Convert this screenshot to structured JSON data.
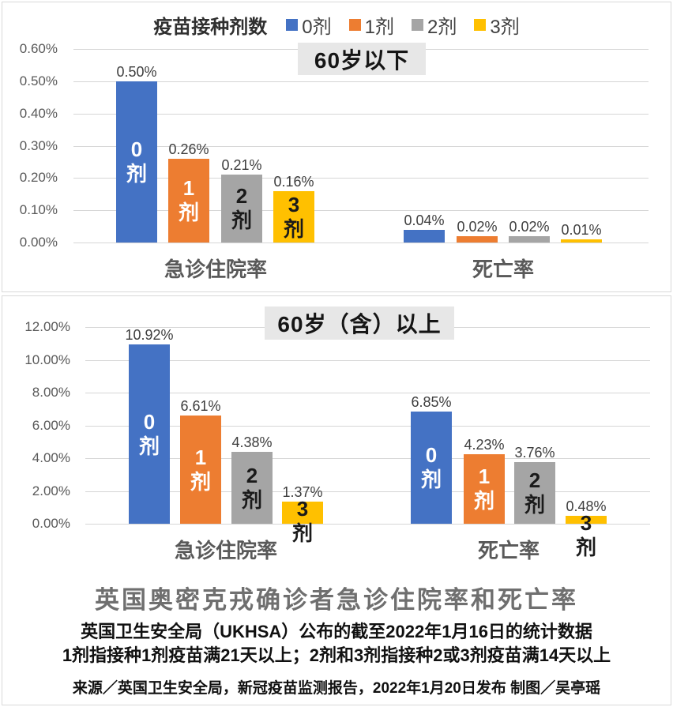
{
  "colors": {
    "dose0": "#4472C4",
    "dose1": "#ED7D31",
    "dose2": "#A5A5A5",
    "dose3": "#FFC000",
    "gridline": "#D6D6D6",
    "axis_text": "#595959",
    "badge_bg": "#E7E7E7",
    "panel_border": "#D9D9D9",
    "title_gray": "#6F6F6F"
  },
  "legend": {
    "title": "疫苗接种剂数"
  },
  "chart_data": [
    {
      "type": "bar",
      "title": "60岁以下",
      "categories": [
        "急诊住院率",
        "死亡率"
      ],
      "ylabel": "",
      "ymax": 0.6,
      "ylim": [
        0,
        0.6
      ],
      "grid": true,
      "legend_position": "top",
      "yticks": [
        "0.60%",
        "0.50%",
        "0.40%",
        "0.30%",
        "0.20%",
        "0.10%",
        "0.00%"
      ],
      "series": [
        {
          "name": "0剂",
          "color": "#4472C4",
          "label_color": "#FFFFFF",
          "values": [
            0.5,
            0.04
          ],
          "labels": [
            "0.50%",
            "0.04%"
          ]
        },
        {
          "name": "1剂",
          "color": "#ED7D31",
          "label_color": "#FFFFFF",
          "values": [
            0.26,
            0.02
          ],
          "labels": [
            "0.26%",
            "0.02%"
          ]
        },
        {
          "name": "2剂",
          "color": "#A5A5A5",
          "label_color": "#1A1A1A",
          "values": [
            0.21,
            0.02
          ],
          "labels": [
            "0.21%",
            "0.02%"
          ]
        },
        {
          "name": "3剂",
          "color": "#FFC000",
          "label_color": "#1A1A1A",
          "values": [
            0.16,
            0.01
          ],
          "labels": [
            "0.16%",
            "0.01%"
          ]
        }
      ],
      "show_dose_labels": [
        true,
        false
      ]
    },
    {
      "type": "bar",
      "title": "60岁（含）以上",
      "categories": [
        "急诊住院率",
        "死亡率"
      ],
      "ylabel": "",
      "ymax": 12,
      "ylim": [
        0,
        12
      ],
      "grid": true,
      "yticks": [
        "12.00%",
        "10.00%",
        "8.00%",
        "6.00%",
        "4.00%",
        "2.00%",
        "0.00%"
      ],
      "series": [
        {
          "name": "0剂",
          "color": "#4472C4",
          "label_color": "#FFFFFF",
          "values": [
            10.92,
            6.85
          ],
          "labels": [
            "10.92%",
            "6.85%"
          ]
        },
        {
          "name": "1剂",
          "color": "#ED7D31",
          "label_color": "#FFFFFF",
          "values": [
            6.61,
            4.23
          ],
          "labels": [
            "6.61%",
            "4.23%"
          ]
        },
        {
          "name": "2剂",
          "color": "#A5A5A5",
          "label_color": "#1A1A1A",
          "values": [
            4.38,
            3.76
          ],
          "labels": [
            "4.38%",
            "3.76%"
          ]
        },
        {
          "name": "3剂",
          "color": "#FFC000",
          "label_color": "#1A1A1A",
          "values": [
            1.37,
            0.48
          ],
          "labels": [
            "1.37%",
            "0.48%"
          ]
        }
      ],
      "show_dose_labels": [
        true,
        true
      ]
    }
  ],
  "footer": {
    "title": "英国奥密克戎确诊者急诊住院率和死亡率",
    "subtitle1": "英国卫生安全局（UKHSA）公布的截至2022年1月16日的统计数据",
    "subtitle2": "1剂指接种1剂疫苗满21天以上；2剂和3剂指接种2或3剂疫苗满14天以上",
    "source": "来源／英国卫生安全局，新冠疫苗监测报告，2022年1月20日发布  制图／吴亭瑶"
  }
}
